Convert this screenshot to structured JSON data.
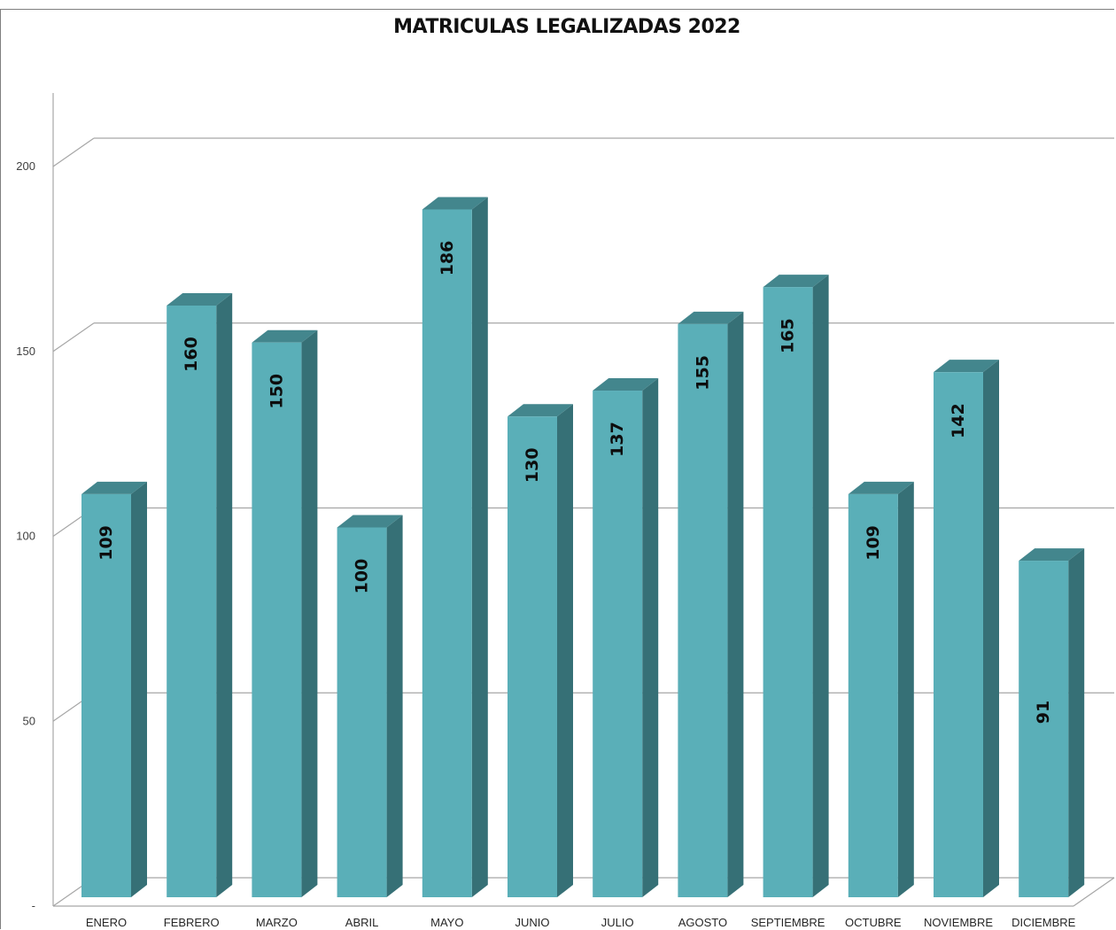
{
  "chart_data": {
    "type": "bar",
    "title": "MATRICULAS LEGALIZADAS 2022",
    "categories": [
      "ENERO",
      "FEBRERO",
      "MARZO",
      "ABRIL",
      "MAYO",
      "JUNIO",
      "JULIO",
      "AGOSTO",
      "SEPTIEMBRE",
      "OCTUBRE",
      "NOVIEMBRE",
      "DICIEMBRE"
    ],
    "values": [
      109,
      160,
      150,
      100,
      186,
      130,
      137,
      155,
      165,
      109,
      142,
      91
    ],
    "y_ticks": [
      "-",
      "50",
      "100",
      "150",
      "200"
    ],
    "ylim": [
      0,
      200
    ],
    "grid": true,
    "legend": "none",
    "colors": {
      "front": "#5aafb8",
      "side": "#367076",
      "top": "#43868d",
      "grid": "#a6a6a6"
    }
  }
}
